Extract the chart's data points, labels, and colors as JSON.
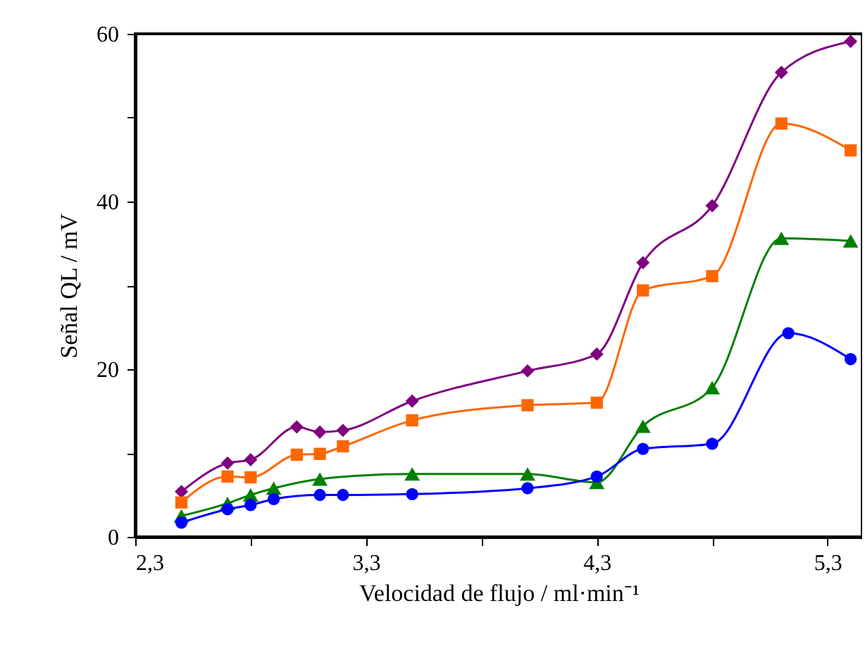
{
  "chart_data": {
    "type": "line",
    "xlabel": "Velocidad de flujo / ml·min⁻¹",
    "ylabel": "Señal QL / mV",
    "xlim": [
      2.3,
      5.45
    ],
    "xticks": [
      {
        "value": 2.3,
        "label": "2,3"
      },
      {
        "value": 2.8,
        "label": null
      },
      {
        "value": 3.3,
        "label": "3,3"
      },
      {
        "value": 3.8,
        "label": null
      },
      {
        "value": 4.3,
        "label": "4,3"
      },
      {
        "value": 4.8,
        "label": null
      },
      {
        "value": 5.3,
        "label": "5,3"
      }
    ],
    "ylim": [
      0,
      60
    ],
    "yticks": [
      0,
      {
        "value": 10,
        "label": null
      },
      20,
      {
        "value": 30,
        "label": null
      },
      40,
      {
        "value": 50,
        "label": null
      },
      60
    ],
    "grid": false,
    "line_style": "solid",
    "series": [
      {
        "color": "#800080",
        "marker": "diamond",
        "x": [
          2.5,
          2.7,
          2.8,
          3.0,
          3.1,
          3.2,
          3.5,
          4.0,
          4.3,
          4.5,
          4.8,
          5.1,
          5.4
        ],
        "values": [
          5.4,
          8.8,
          9.2,
          13.1,
          12.5,
          12.7,
          16.2,
          19.8,
          21.8,
          32.7,
          39.5,
          55.4,
          59.1
        ]
      },
      {
        "color": "#ff6600",
        "marker": "square",
        "x": [
          2.5,
          2.7,
          2.8,
          3.0,
          3.1,
          3.2,
          3.5,
          4.0,
          4.3,
          4.5,
          4.8,
          5.1,
          5.4
        ],
        "values": [
          4.1,
          7.2,
          7.1,
          9.8,
          9.9,
          10.8,
          13.9,
          15.7,
          16.0,
          29.4,
          31.1,
          49.3,
          46.1
        ]
      },
      {
        "color": "#008000",
        "marker": "triangle",
        "x": [
          2.5,
          2.7,
          2.8,
          2.9,
          3.1,
          3.5,
          4.0,
          4.3,
          4.5,
          4.8,
          5.1,
          5.4
        ],
        "values": [
          2.5,
          4.0,
          5.0,
          5.8,
          6.9,
          7.5,
          7.5,
          6.5,
          13.2,
          17.8,
          35.6,
          35.3
        ]
      },
      {
        "color": "#0000ff",
        "marker": "circle",
        "x": [
          2.5,
          2.7,
          2.8,
          2.9,
          3.1,
          3.2,
          3.5,
          4.0,
          4.3,
          4.5,
          4.8,
          5.13,
          5.4
        ],
        "values": [
          1.7,
          3.3,
          3.8,
          4.5,
          5.0,
          5.0,
          5.1,
          5.8,
          7.2,
          10.5,
          11.1,
          24.3,
          21.2
        ]
      }
    ]
  }
}
